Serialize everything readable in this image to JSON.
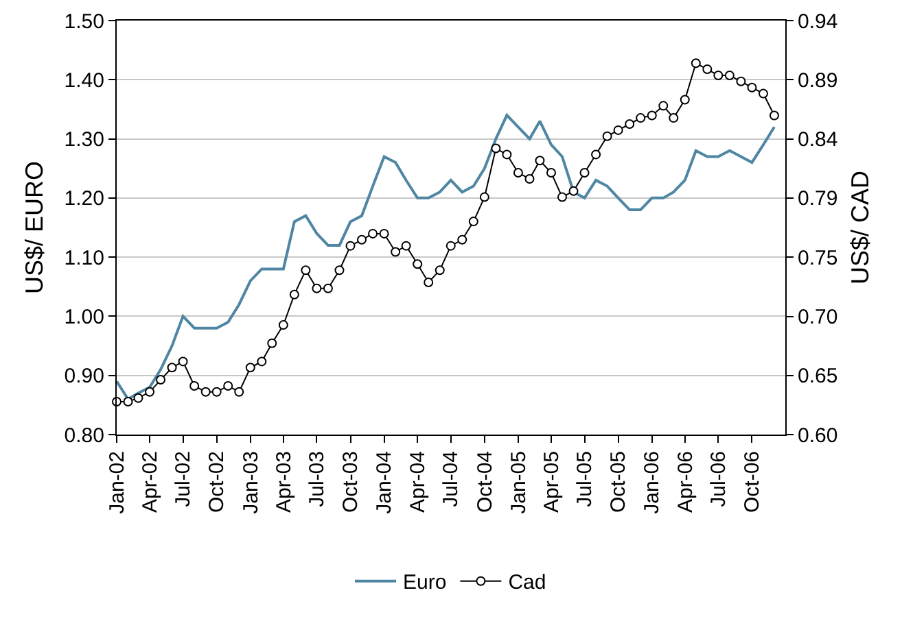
{
  "chart_data": {
    "type": "line",
    "ylabel": "US$/ EURO",
    "y2label": "US$/ CAD",
    "x": [
      "2002-01",
      "2002-02",
      "2002-03",
      "2002-04",
      "2002-05",
      "2002-06",
      "2002-07",
      "2002-08",
      "2002-09",
      "2002-10",
      "2002-11",
      "2002-12",
      "2003-01",
      "2003-02",
      "2003-03",
      "2003-04",
      "2003-05",
      "2003-06",
      "2003-07",
      "2003-08",
      "2003-09",
      "2003-10",
      "2003-11",
      "2003-12",
      "2004-01",
      "2004-02",
      "2004-03",
      "2004-04",
      "2004-05",
      "2004-06",
      "2004-07",
      "2004-08",
      "2004-09",
      "2004-10",
      "2004-11",
      "2004-12",
      "2005-01",
      "2005-02",
      "2005-03",
      "2005-04",
      "2005-05",
      "2005-06",
      "2005-07",
      "2005-08",
      "2005-09",
      "2005-10",
      "2005-11",
      "2005-12",
      "2006-01",
      "2006-02",
      "2006-03",
      "2006-04",
      "2006-05",
      "2006-06",
      "2006-07",
      "2006-08",
      "2006-09",
      "2006-10",
      "2006-11",
      "2006-12"
    ],
    "series": [
      {
        "name": "Euro",
        "color": "#4f86a3",
        "marker": "none",
        "values": [
          0.89,
          0.86,
          0.87,
          0.88,
          0.91,
          0.95,
          1.0,
          0.98,
          0.98,
          0.98,
          0.99,
          1.02,
          1.06,
          1.08,
          1.08,
          1.08,
          1.16,
          1.17,
          1.14,
          1.12,
          1.12,
          1.16,
          1.17,
          1.22,
          1.27,
          1.26,
          1.23,
          1.2,
          1.2,
          1.21,
          1.23,
          1.21,
          1.22,
          1.25,
          1.3,
          1.34,
          1.32,
          1.3,
          1.33,
          1.29,
          1.27,
          1.21,
          1.2,
          1.23,
          1.22,
          1.2,
          1.18,
          1.18,
          1.2,
          1.2,
          1.21,
          1.23,
          1.28,
          1.27,
          1.27,
          1.28,
          1.27,
          1.26,
          1.29,
          1.32
        ]
      },
      {
        "name": "Cad",
        "color": "#000000",
        "marker": "circle",
        "axis": "y2",
        "values": [
          0.627,
          0.627,
          0.63,
          0.635,
          0.645,
          0.655,
          0.66,
          0.64,
          0.635,
          0.635,
          0.64,
          0.635,
          0.655,
          0.66,
          0.675,
          0.69,
          0.715,
          0.735,
          0.72,
          0.72,
          0.735,
          0.755,
          0.76,
          0.765,
          0.765,
          0.75,
          0.755,
          0.74,
          0.725,
          0.735,
          0.755,
          0.76,
          0.775,
          0.795,
          0.835,
          0.83,
          0.815,
          0.81,
          0.825,
          0.815,
          0.795,
          0.8,
          0.815,
          0.83,
          0.845,
          0.85,
          0.855,
          0.86,
          0.862,
          0.87,
          0.86,
          0.875,
          0.905,
          0.9,
          0.895,
          0.895,
          0.89,
          0.885,
          0.88,
          0.862
        ]
      }
    ],
    "xlim": [
      "2002-01",
      "2006-12-31"
    ],
    "xticks": [
      {
        "value": "2002-01",
        "label": "Jan-02"
      },
      {
        "value": "2002-04",
        "label": "Apr-02"
      },
      {
        "value": "2002-07",
        "label": "Jul-02"
      },
      {
        "value": "2002-10",
        "label": "Oct-02"
      },
      {
        "value": "2003-01",
        "label": "Jan-03"
      },
      {
        "value": "2003-04",
        "label": "Apr-03"
      },
      {
        "value": "2003-07",
        "label": "Jul-03"
      },
      {
        "value": "2003-10",
        "label": "Oct-03"
      },
      {
        "value": "2004-01",
        "label": "Jan-04"
      },
      {
        "value": "2004-04",
        "label": "Apr-04"
      },
      {
        "value": "2004-07",
        "label": "Jul-04"
      },
      {
        "value": "2004-10",
        "label": "Oct-04"
      },
      {
        "value": "2005-01",
        "label": "Jan-05"
      },
      {
        "value": "2005-04",
        "label": "Apr-05"
      },
      {
        "value": "2005-07",
        "label": "Jul-05"
      },
      {
        "value": "2005-10",
        "label": "Oct-05"
      },
      {
        "value": "2006-01",
        "label": "Jan-06"
      },
      {
        "value": "2006-04",
        "label": "Apr-06"
      },
      {
        "value": "2006-07",
        "label": "Jul-06"
      },
      {
        "value": "2006-10",
        "label": "Oct-06"
      }
    ],
    "ylim": [
      0.8,
      1.5
    ],
    "yticks": [
      {
        "value": 0.8,
        "label": "0.80"
      },
      {
        "value": 0.9,
        "label": "0.90"
      },
      {
        "value": 1.0,
        "label": "1.00"
      },
      {
        "value": 1.1,
        "label": "1.10"
      },
      {
        "value": 1.2,
        "label": "1.20"
      },
      {
        "value": 1.3,
        "label": "1.30"
      },
      {
        "value": 1.4,
        "label": "1.40"
      },
      {
        "value": 1.5,
        "label": "1.50"
      }
    ],
    "y2lim": [
      0.6,
      0.94
    ],
    "y2ticks": [
      {
        "value": 0.6,
        "label": "0.60"
      },
      {
        "value": 0.6486,
        "label": "0.65"
      },
      {
        "value": 0.6971,
        "label": "0.70"
      },
      {
        "value": 0.7457,
        "label": "0.75"
      },
      {
        "value": 0.7943,
        "label": "0.79"
      },
      {
        "value": 0.8429,
        "label": "0.84"
      },
      {
        "value": 0.8914,
        "label": "0.89"
      },
      {
        "value": 0.94,
        "label": "0.94"
      }
    ],
    "grid": "y",
    "legend": "bottom",
    "line_style": "solid"
  }
}
